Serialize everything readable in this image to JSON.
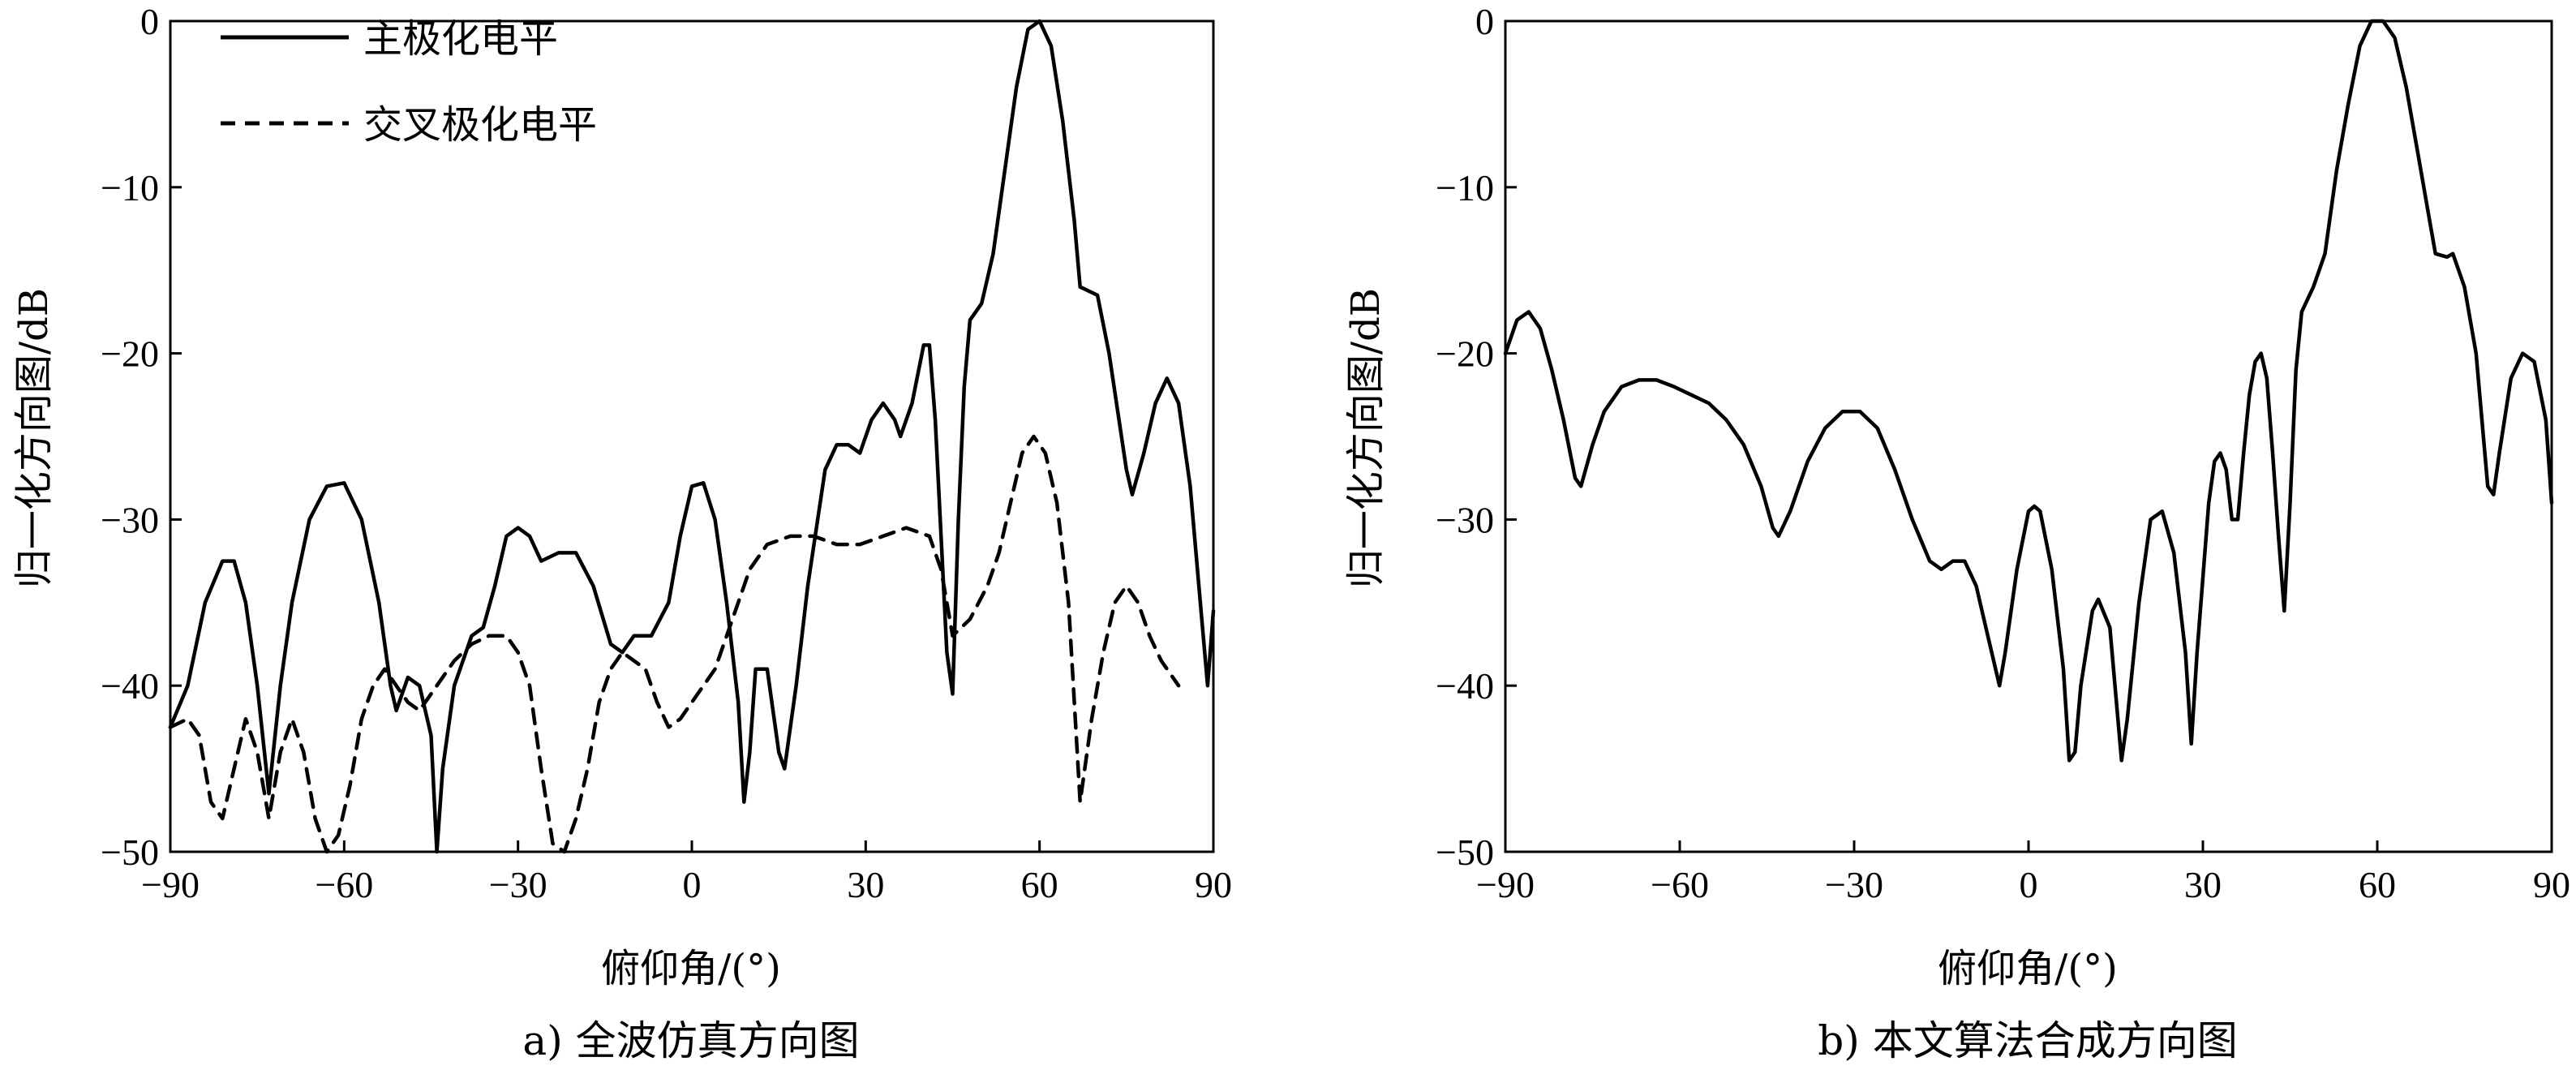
{
  "chart_data": [
    {
      "type": "line",
      "caption": "a) 全波仿真方向图",
      "xlabel": "俯仰角/(°)",
      "ylabel": "归一化方向图/dB",
      "xlim": [
        -90,
        90
      ],
      "ylim": [
        -50,
        0
      ],
      "xticks": [
        "−90",
        "−60",
        "−30",
        "0",
        "30",
        "60",
        "90"
      ],
      "yticks": [
        "0",
        "−10",
        "−20",
        "−30",
        "−40",
        "−50"
      ],
      "legend_position": "top-left",
      "grid": false,
      "series": [
        {
          "name": "主极化电平",
          "style": "solid",
          "color": "#000000",
          "points": [
            [
              -90,
              -42.5
            ],
            [
              -87,
              -40
            ],
            [
              -84,
              -35
            ],
            [
              -81,
              -32.5
            ],
            [
              -79,
              -32.5
            ],
            [
              -77,
              -35
            ],
            [
              -75,
              -40
            ],
            [
              -73,
              -46.5
            ],
            [
              -71,
              -40
            ],
            [
              -69,
              -35
            ],
            [
              -66,
              -30
            ],
            [
              -63,
              -28
            ],
            [
              -60,
              -27.8
            ],
            [
              -57,
              -30
            ],
            [
              -54,
              -35
            ],
            [
              -52,
              -40
            ],
            [
              -51,
              -41.5
            ],
            [
              -49,
              -39.5
            ],
            [
              -47,
              -40
            ],
            [
              -45,
              -43
            ],
            [
              -44,
              -50
            ],
            [
              -43,
              -45
            ],
            [
              -41,
              -40
            ],
            [
              -38,
              -37
            ],
            [
              -36,
              -36.5
            ],
            [
              -34,
              -34
            ],
            [
              -32,
              -31
            ],
            [
              -30,
              -30.5
            ],
            [
              -28,
              -31
            ],
            [
              -26,
              -32.5
            ],
            [
              -23,
              -32
            ],
            [
              -20,
              -32
            ],
            [
              -17,
              -34
            ],
            [
              -14,
              -37.5
            ],
            [
              -12,
              -38
            ],
            [
              -10,
              -37
            ],
            [
              -7,
              -37
            ],
            [
              -4,
              -35
            ],
            [
              -2,
              -31
            ],
            [
              0,
              -28
            ],
            [
              2,
              -27.8
            ],
            [
              4,
              -30
            ],
            [
              6,
              -35
            ],
            [
              8,
              -41
            ],
            [
              9,
              -47
            ],
            [
              10,
              -44
            ],
            [
              11,
              -39
            ],
            [
              13,
              -39
            ],
            [
              15,
              -44
            ],
            [
              16,
              -45
            ],
            [
              18,
              -40
            ],
            [
              20,
              -34
            ],
            [
              23,
              -27
            ],
            [
              25,
              -25.5
            ],
            [
              27,
              -25.5
            ],
            [
              29,
              -26
            ],
            [
              31,
              -24
            ],
            [
              33,
              -23
            ],
            [
              35,
              -24
            ],
            [
              36,
              -25
            ],
            [
              38,
              -23
            ],
            [
              40,
              -19.5
            ],
            [
              41,
              -19.5
            ],
            [
              42,
              -24
            ],
            [
              44,
              -38
            ],
            [
              45,
              -40.5
            ],
            [
              46,
              -30
            ],
            [
              47,
              -22
            ],
            [
              48,
              -18
            ],
            [
              50,
              -17
            ],
            [
              52,
              -14
            ],
            [
              54,
              -9
            ],
            [
              56,
              -4
            ],
            [
              58,
              -0.5
            ],
            [
              60,
              0
            ],
            [
              62,
              -1.5
            ],
            [
              64,
              -6
            ],
            [
              66,
              -12
            ],
            [
              67,
              -16
            ],
            [
              70,
              -16.5
            ],
            [
              72,
              -20
            ],
            [
              75,
              -27
            ],
            [
              76,
              -28.5
            ],
            [
              78,
              -26
            ],
            [
              80,
              -23
            ],
            [
              82,
              -21.5
            ],
            [
              84,
              -23
            ],
            [
              86,
              -28
            ],
            [
              88,
              -36
            ],
            [
              89,
              -40
            ],
            [
              90,
              -35.5
            ]
          ]
        },
        {
          "name": "交叉极化电平",
          "style": "dashed",
          "color": "#000000",
          "points": [
            [
              -90,
              -42.5
            ],
            [
              -87,
              -42
            ],
            [
              -85,
              -43
            ],
            [
              -83,
              -47
            ],
            [
              -81,
              -48
            ],
            [
              -79,
              -45
            ],
            [
              -77,
              -42
            ],
            [
              -75,
              -44
            ],
            [
              -73,
              -48
            ],
            [
              -71,
              -44
            ],
            [
              -69,
              -42
            ],
            [
              -67,
              -44
            ],
            [
              -65,
              -48
            ],
            [
              -63,
              -50
            ],
            [
              -61,
              -49
            ],
            [
              -59,
              -46
            ],
            [
              -57,
              -42
            ],
            [
              -55,
              -40
            ],
            [
              -53,
              -39
            ],
            [
              -51,
              -40
            ],
            [
              -49,
              -41
            ],
            [
              -47,
              -41.5
            ],
            [
              -44,
              -40
            ],
            [
              -41,
              -38.5
            ],
            [
              -38,
              -37.5
            ],
            [
              -35,
              -37
            ],
            [
              -32,
              -37
            ],
            [
              -30,
              -38
            ],
            [
              -28,
              -40
            ],
            [
              -26,
              -45
            ],
            [
              -24,
              -49.5
            ],
            [
              -22,
              -50
            ],
            [
              -20,
              -48
            ],
            [
              -18,
              -45
            ],
            [
              -16,
              -41
            ],
            [
              -14,
              -39
            ],
            [
              -12,
              -38
            ],
            [
              -10,
              -38.5
            ],
            [
              -8,
              -39
            ],
            [
              -6,
              -41
            ],
            [
              -4,
              -42.5
            ],
            [
              -2,
              -42
            ],
            [
              0,
              -41
            ],
            [
              2,
              -40
            ],
            [
              4,
              -39
            ],
            [
              6,
              -37
            ],
            [
              8,
              -35
            ],
            [
              10,
              -33
            ],
            [
              13,
              -31.5
            ],
            [
              17,
              -31
            ],
            [
              21,
              -31
            ],
            [
              25,
              -31.5
            ],
            [
              29,
              -31.5
            ],
            [
              33,
              -31
            ],
            [
              37,
              -30.5
            ],
            [
              41,
              -31
            ],
            [
              43,
              -33
            ],
            [
              44,
              -35
            ],
            [
              45,
              -37
            ],
            [
              48,
              -36
            ],
            [
              51,
              -34
            ],
            [
              53,
              -32
            ],
            [
              55,
              -29
            ],
            [
              57,
              -26
            ],
            [
              59,
              -25
            ],
            [
              61,
              -26
            ],
            [
              63,
              -29
            ],
            [
              65,
              -35
            ],
            [
              67,
              -47
            ],
            [
              69,
              -42
            ],
            [
              71,
              -38
            ],
            [
              73,
              -35
            ],
            [
              75,
              -34
            ],
            [
              77,
              -35
            ],
            [
              79,
              -37
            ],
            [
              81,
              -38.5
            ],
            [
              84,
              -40
            ]
          ]
        }
      ]
    },
    {
      "type": "line",
      "caption": "b) 本文算法合成方向图",
      "xlabel": "俯仰角/(°)",
      "ylabel": "归一化方向图/dB",
      "xlim": [
        -90,
        90
      ],
      "ylim": [
        -50,
        0
      ],
      "xticks": [
        "−90",
        "−60",
        "−30",
        "0",
        "30",
        "60",
        "90"
      ],
      "yticks": [
        "0",
        "−10",
        "−20",
        "−30",
        "−40",
        "−50"
      ],
      "grid": false,
      "series": [
        {
          "style": "solid",
          "color": "#000000",
          "points": [
            [
              -90,
              -20
            ],
            [
              -88,
              -18
            ],
            [
              -86,
              -17.5
            ],
            [
              -84,
              -18.5
            ],
            [
              -82,
              -21
            ],
            [
              -80,
              -24
            ],
            [
              -78,
              -27.5
            ],
            [
              -77,
              -28
            ],
            [
              -75,
              -25.5
            ],
            [
              -73,
              -23.5
            ],
            [
              -70,
              -22
            ],
            [
              -67,
              -21.6
            ],
            [
              -64,
              -21.6
            ],
            [
              -61,
              -22
            ],
            [
              -58,
              -22.5
            ],
            [
              -55,
              -23
            ],
            [
              -52,
              -24
            ],
            [
              -49,
              -25.5
            ],
            [
              -46,
              -28
            ],
            [
              -44,
              -30.5
            ],
            [
              -43,
              -31
            ],
            [
              -41,
              -29.5
            ],
            [
              -38,
              -26.5
            ],
            [
              -35,
              -24.5
            ],
            [
              -32,
              -23.5
            ],
            [
              -29,
              -23.5
            ],
            [
              -26,
              -24.5
            ],
            [
              -23,
              -27
            ],
            [
              -20,
              -30
            ],
            [
              -17,
              -32.5
            ],
            [
              -15,
              -33
            ],
            [
              -13,
              -32.5
            ],
            [
              -11,
              -32.5
            ],
            [
              -9,
              -34
            ],
            [
              -7,
              -37
            ],
            [
              -5,
              -40
            ],
            [
              -4,
              -38
            ],
            [
              -2,
              -33
            ],
            [
              0,
              -29.5
            ],
            [
              1,
              -29.2
            ],
            [
              2,
              -29.5
            ],
            [
              4,
              -33
            ],
            [
              6,
              -39
            ],
            [
              7,
              -44.5
            ],
            [
              8,
              -44
            ],
            [
              9,
              -40
            ],
            [
              11,
              -35.5
            ],
            [
              12,
              -34.8
            ],
            [
              14,
              -36.5
            ],
            [
              16,
              -44.5
            ],
            [
              17,
              -42
            ],
            [
              19,
              -35
            ],
            [
              21,
              -30
            ],
            [
              23,
              -29.5
            ],
            [
              25,
              -32
            ],
            [
              27,
              -38
            ],
            [
              28,
              -43.5
            ],
            [
              29,
              -38
            ],
            [
              31,
              -29
            ],
            [
              32,
              -26.5
            ],
            [
              33,
              -26
            ],
            [
              34,
              -27
            ],
            [
              35,
              -30
            ],
            [
              36,
              -30
            ],
            [
              37,
              -26
            ],
            [
              38,
              -22.5
            ],
            [
              39,
              -20.5
            ],
            [
              40,
              -20
            ],
            [
              41,
              -21.5
            ],
            [
              42,
              -26
            ],
            [
              43,
              -31
            ],
            [
              44,
              -35.5
            ],
            [
              45,
              -29
            ],
            [
              46,
              -21
            ],
            [
              47,
              -17.5
            ],
            [
              49,
              -16
            ],
            [
              51,
              -14
            ],
            [
              53,
              -9
            ],
            [
              55,
              -5
            ],
            [
              57,
              -1.5
            ],
            [
              59,
              0
            ],
            [
              61,
              0
            ],
            [
              63,
              -1
            ],
            [
              65,
              -4
            ],
            [
              67,
              -8
            ],
            [
              69,
              -12
            ],
            [
              70,
              -14
            ],
            [
              72,
              -14.2
            ],
            [
              73,
              -14
            ],
            [
              75,
              -16
            ],
            [
              77,
              -20
            ],
            [
              78,
              -24
            ],
            [
              79,
              -28
            ],
            [
              80,
              -28.5
            ],
            [
              81,
              -26
            ],
            [
              83,
              -21.5
            ],
            [
              85,
              -20
            ],
            [
              87,
              -20.5
            ],
            [
              89,
              -24
            ],
            [
              90,
              -29
            ]
          ]
        }
      ]
    }
  ]
}
